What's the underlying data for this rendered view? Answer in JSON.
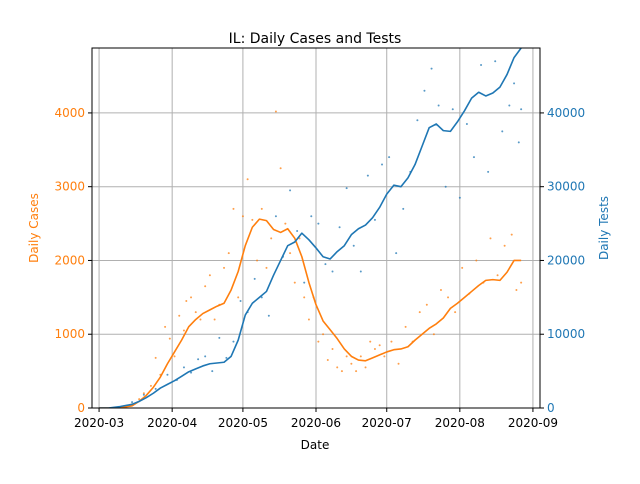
{
  "chart_data": {
    "type": "line",
    "title": "IL: Daily Cases and Tests",
    "xlabel": "Date",
    "ylabel_left": "Daily Cases",
    "ylabel_right": "Daily Tests",
    "x_ticks": [
      "2020-03",
      "2020-04",
      "2020-05",
      "2020-06",
      "2020-07",
      "2020-08",
      "2020-09"
    ],
    "x_range": [
      "2020-02-27",
      "2020-09-04"
    ],
    "y_left_ticks": [
      0,
      1000,
      2000,
      3000,
      4000
    ],
    "y_left_range": [
      0,
      4880
    ],
    "y_right_ticks": [
      0,
      10000,
      20000,
      30000,
      40000
    ],
    "y_right_range": [
      0,
      48800
    ],
    "grid": true,
    "colors": {
      "cases": "#ff7f0e",
      "tests": "#1f77b4"
    },
    "series": [
      {
        "key": "cases_avg",
        "axis": "left",
        "style": "line",
        "points": [
          [
            "2020-03-01",
            0
          ],
          [
            "2020-03-05",
            0
          ],
          [
            "2020-03-10",
            5
          ],
          [
            "2020-03-15",
            30
          ],
          [
            "2020-03-18",
            90
          ],
          [
            "2020-03-21",
            170
          ],
          [
            "2020-03-24",
            280
          ],
          [
            "2020-03-27",
            420
          ],
          [
            "2020-03-30",
            600
          ],
          [
            "2020-04-02",
            760
          ],
          [
            "2020-04-05",
            920
          ],
          [
            "2020-04-08",
            1100
          ],
          [
            "2020-04-11",
            1200
          ],
          [
            "2020-04-14",
            1280
          ],
          [
            "2020-04-17",
            1330
          ],
          [
            "2020-04-20",
            1380
          ],
          [
            "2020-04-23",
            1420
          ],
          [
            "2020-04-26",
            1600
          ],
          [
            "2020-04-29",
            1850
          ],
          [
            "2020-05-02",
            2200
          ],
          [
            "2020-05-05",
            2450
          ],
          [
            "2020-05-08",
            2560
          ],
          [
            "2020-05-11",
            2540
          ],
          [
            "2020-05-14",
            2420
          ],
          [
            "2020-05-17",
            2380
          ],
          [
            "2020-05-20",
            2430
          ],
          [
            "2020-05-23",
            2300
          ],
          [
            "2020-05-26",
            2050
          ],
          [
            "2020-05-29",
            1700
          ],
          [
            "2020-06-01",
            1400
          ],
          [
            "2020-06-04",
            1180
          ],
          [
            "2020-06-07",
            1060
          ],
          [
            "2020-06-10",
            940
          ],
          [
            "2020-06-13",
            800
          ],
          [
            "2020-06-16",
            700
          ],
          [
            "2020-06-19",
            650
          ],
          [
            "2020-06-22",
            640
          ],
          [
            "2020-06-25",
            680
          ],
          [
            "2020-06-28",
            720
          ],
          [
            "2020-07-01",
            760
          ],
          [
            "2020-07-04",
            790
          ],
          [
            "2020-07-07",
            800
          ],
          [
            "2020-07-10",
            830
          ],
          [
            "2020-07-13",
            920
          ],
          [
            "2020-07-16",
            1000
          ],
          [
            "2020-07-19",
            1080
          ],
          [
            "2020-07-22",
            1140
          ],
          [
            "2020-07-25",
            1220
          ],
          [
            "2020-07-28",
            1350
          ],
          [
            "2020-07-31",
            1420
          ],
          [
            "2020-08-03",
            1500
          ],
          [
            "2020-08-06",
            1580
          ],
          [
            "2020-08-09",
            1660
          ],
          [
            "2020-08-12",
            1730
          ],
          [
            "2020-08-15",
            1740
          ],
          [
            "2020-08-18",
            1730
          ],
          [
            "2020-08-21",
            1840
          ],
          [
            "2020-08-24",
            2000
          ],
          [
            "2020-08-27",
            2000
          ]
        ]
      },
      {
        "key": "tests_avg",
        "axis": "right",
        "style": "line",
        "points": [
          [
            "2020-03-01",
            0
          ],
          [
            "2020-03-05",
            0
          ],
          [
            "2020-03-10",
            200
          ],
          [
            "2020-03-15",
            500
          ],
          [
            "2020-03-18",
            900
          ],
          [
            "2020-03-21",
            1400
          ],
          [
            "2020-03-24",
            2000
          ],
          [
            "2020-03-27",
            2700
          ],
          [
            "2020-03-30",
            3200
          ],
          [
            "2020-04-02",
            3700
          ],
          [
            "2020-04-05",
            4300
          ],
          [
            "2020-04-08",
            4900
          ],
          [
            "2020-04-11",
            5300
          ],
          [
            "2020-04-14",
            5700
          ],
          [
            "2020-04-17",
            6000
          ],
          [
            "2020-04-20",
            6100
          ],
          [
            "2020-04-23",
            6200
          ],
          [
            "2020-04-26",
            7000
          ],
          [
            "2020-04-29",
            9200
          ],
          [
            "2020-05-02",
            12600
          ],
          [
            "2020-05-05",
            14200
          ],
          [
            "2020-05-08",
            15000
          ],
          [
            "2020-05-11",
            15800
          ],
          [
            "2020-05-14",
            18000
          ],
          [
            "2020-05-17",
            20000
          ],
          [
            "2020-05-20",
            22000
          ],
          [
            "2020-05-23",
            22500
          ],
          [
            "2020-05-26",
            23700
          ],
          [
            "2020-05-29",
            22800
          ],
          [
            "2020-06-01",
            21700
          ],
          [
            "2020-06-04",
            20500
          ],
          [
            "2020-06-07",
            20200
          ],
          [
            "2020-06-10",
            21200
          ],
          [
            "2020-06-13",
            22000
          ],
          [
            "2020-06-16",
            23500
          ],
          [
            "2020-06-19",
            24300
          ],
          [
            "2020-06-22",
            24800
          ],
          [
            "2020-06-25",
            25800
          ],
          [
            "2020-06-28",
            27200
          ],
          [
            "2020-07-01",
            29000
          ],
          [
            "2020-07-04",
            30200
          ],
          [
            "2020-07-07",
            30000
          ],
          [
            "2020-07-10",
            31200
          ],
          [
            "2020-07-13",
            33000
          ],
          [
            "2020-07-16",
            35500
          ],
          [
            "2020-07-19",
            38000
          ],
          [
            "2020-07-22",
            38500
          ],
          [
            "2020-07-25",
            37600
          ],
          [
            "2020-07-28",
            37500
          ],
          [
            "2020-07-31",
            38800
          ],
          [
            "2020-08-03",
            40300
          ],
          [
            "2020-08-06",
            42000
          ],
          [
            "2020-08-09",
            42800
          ],
          [
            "2020-08-12",
            42300
          ],
          [
            "2020-08-15",
            42700
          ],
          [
            "2020-08-18",
            43500
          ],
          [
            "2020-08-21",
            45200
          ],
          [
            "2020-08-24",
            47500
          ],
          [
            "2020-08-27",
            48800
          ]
        ]
      },
      {
        "key": "cases_daily",
        "axis": "left",
        "style": "scatter",
        "points": [
          [
            "2020-03-15",
            50
          ],
          [
            "2020-03-18",
            120
          ],
          [
            "2020-03-20",
            200
          ],
          [
            "2020-03-23",
            300
          ],
          [
            "2020-03-25",
            680
          ],
          [
            "2020-03-27",
            450
          ],
          [
            "2020-03-29",
            1100
          ],
          [
            "2020-03-31",
            940
          ],
          [
            "2020-04-02",
            700
          ],
          [
            "2020-04-04",
            1250
          ],
          [
            "2020-04-06",
            1050
          ],
          [
            "2020-04-07",
            1450
          ],
          [
            "2020-04-09",
            1500
          ],
          [
            "2020-04-11",
            1300
          ],
          [
            "2020-04-13",
            1200
          ],
          [
            "2020-04-15",
            1650
          ],
          [
            "2020-04-17",
            1800
          ],
          [
            "2020-04-19",
            1200
          ],
          [
            "2020-04-21",
            1400
          ],
          [
            "2020-04-23",
            1900
          ],
          [
            "2020-04-25",
            2100
          ],
          [
            "2020-04-27",
            2700
          ],
          [
            "2020-04-29",
            1500
          ],
          [
            "2020-05-01",
            2600
          ],
          [
            "2020-05-03",
            3100
          ],
          [
            "2020-05-05",
            2550
          ],
          [
            "2020-05-07",
            2000
          ],
          [
            "2020-05-09",
            2700
          ],
          [
            "2020-05-11",
            1900
          ],
          [
            "2020-05-13",
            2300
          ],
          [
            "2020-05-15",
            4020
          ],
          [
            "2020-05-17",
            3250
          ],
          [
            "2020-05-19",
            2500
          ],
          [
            "2020-05-21",
            2100
          ],
          [
            "2020-05-23",
            1700
          ],
          [
            "2020-05-25",
            2300
          ],
          [
            "2020-05-27",
            1500
          ],
          [
            "2020-05-29",
            1200
          ],
          [
            "2020-05-31",
            1500
          ],
          [
            "2020-06-02",
            900
          ],
          [
            "2020-06-04",
            1000
          ],
          [
            "2020-06-06",
            650
          ],
          [
            "2020-06-08",
            800
          ],
          [
            "2020-06-10",
            550
          ],
          [
            "2020-06-12",
            500
          ],
          [
            "2020-06-14",
            700
          ],
          [
            "2020-06-16",
            600
          ],
          [
            "2020-06-18",
            500
          ],
          [
            "2020-06-20",
            700
          ],
          [
            "2020-06-22",
            550
          ],
          [
            "2020-06-24",
            900
          ],
          [
            "2020-06-26",
            800
          ],
          [
            "2020-06-28",
            850
          ],
          [
            "2020-06-30",
            700
          ],
          [
            "2020-07-03",
            900
          ],
          [
            "2020-07-06",
            600
          ],
          [
            "2020-07-09",
            1100
          ],
          [
            "2020-07-12",
            900
          ],
          [
            "2020-07-15",
            1300
          ],
          [
            "2020-07-18",
            1400
          ],
          [
            "2020-07-21",
            1000
          ],
          [
            "2020-07-24",
            1600
          ],
          [
            "2020-07-27",
            1500
          ],
          [
            "2020-07-30",
            1300
          ],
          [
            "2020-08-02",
            1900
          ],
          [
            "2020-08-05",
            1550
          ],
          [
            "2020-08-08",
            2000
          ],
          [
            "2020-08-11",
            1700
          ],
          [
            "2020-08-14",
            2300
          ],
          [
            "2020-08-17",
            1800
          ],
          [
            "2020-08-20",
            2200
          ],
          [
            "2020-08-23",
            2350
          ],
          [
            "2020-08-25",
            1600
          ],
          [
            "2020-08-27",
            1700
          ]
        ]
      },
      {
        "key": "tests_daily",
        "axis": "right",
        "style": "scatter",
        "points": [
          [
            "2020-03-15",
            800
          ],
          [
            "2020-03-20",
            1800
          ],
          [
            "2020-03-25",
            2600
          ],
          [
            "2020-03-30",
            4500
          ],
          [
            "2020-04-03",
            3800
          ],
          [
            "2020-04-06",
            5500
          ],
          [
            "2020-04-09",
            4800
          ],
          [
            "2020-04-12",
            6600
          ],
          [
            "2020-04-15",
            7000
          ],
          [
            "2020-04-18",
            5000
          ],
          [
            "2020-04-21",
            9500
          ],
          [
            "2020-04-24",
            6800
          ],
          [
            "2020-04-27",
            9000
          ],
          [
            "2020-04-30",
            14500
          ],
          [
            "2020-05-03",
            13000
          ],
          [
            "2020-05-06",
            17500
          ],
          [
            "2020-05-09",
            15000
          ],
          [
            "2020-05-12",
            12500
          ],
          [
            "2020-05-15",
            26000
          ],
          [
            "2020-05-18",
            20500
          ],
          [
            "2020-05-21",
            29500
          ],
          [
            "2020-05-24",
            24000
          ],
          [
            "2020-05-27",
            17000
          ],
          [
            "2020-05-30",
            26000
          ],
          [
            "2020-06-02",
            25000
          ],
          [
            "2020-06-05",
            19500
          ],
          [
            "2020-06-08",
            18500
          ],
          [
            "2020-06-11",
            24500
          ],
          [
            "2020-06-14",
            29800
          ],
          [
            "2020-06-17",
            22000
          ],
          [
            "2020-06-20",
            18500
          ],
          [
            "2020-06-23",
            31500
          ],
          [
            "2020-06-26",
            25500
          ],
          [
            "2020-06-29",
            33000
          ],
          [
            "2020-07-02",
            34000
          ],
          [
            "2020-07-05",
            21000
          ],
          [
            "2020-07-08",
            27000
          ],
          [
            "2020-07-11",
            32000
          ],
          [
            "2020-07-14",
            39000
          ],
          [
            "2020-07-17",
            43000
          ],
          [
            "2020-07-20",
            46000
          ],
          [
            "2020-07-23",
            41000
          ],
          [
            "2020-07-26",
            30000
          ],
          [
            "2020-07-29",
            40500
          ],
          [
            "2020-08-01",
            28500
          ],
          [
            "2020-08-04",
            38500
          ],
          [
            "2020-08-07",
            34000
          ],
          [
            "2020-08-10",
            46500
          ],
          [
            "2020-08-13",
            32000
          ],
          [
            "2020-08-16",
            47000
          ],
          [
            "2020-08-19",
            37500
          ],
          [
            "2020-08-22",
            41000
          ],
          [
            "2020-08-24",
            44000
          ],
          [
            "2020-08-26",
            36000
          ],
          [
            "2020-08-27",
            40500
          ]
        ]
      }
    ]
  }
}
